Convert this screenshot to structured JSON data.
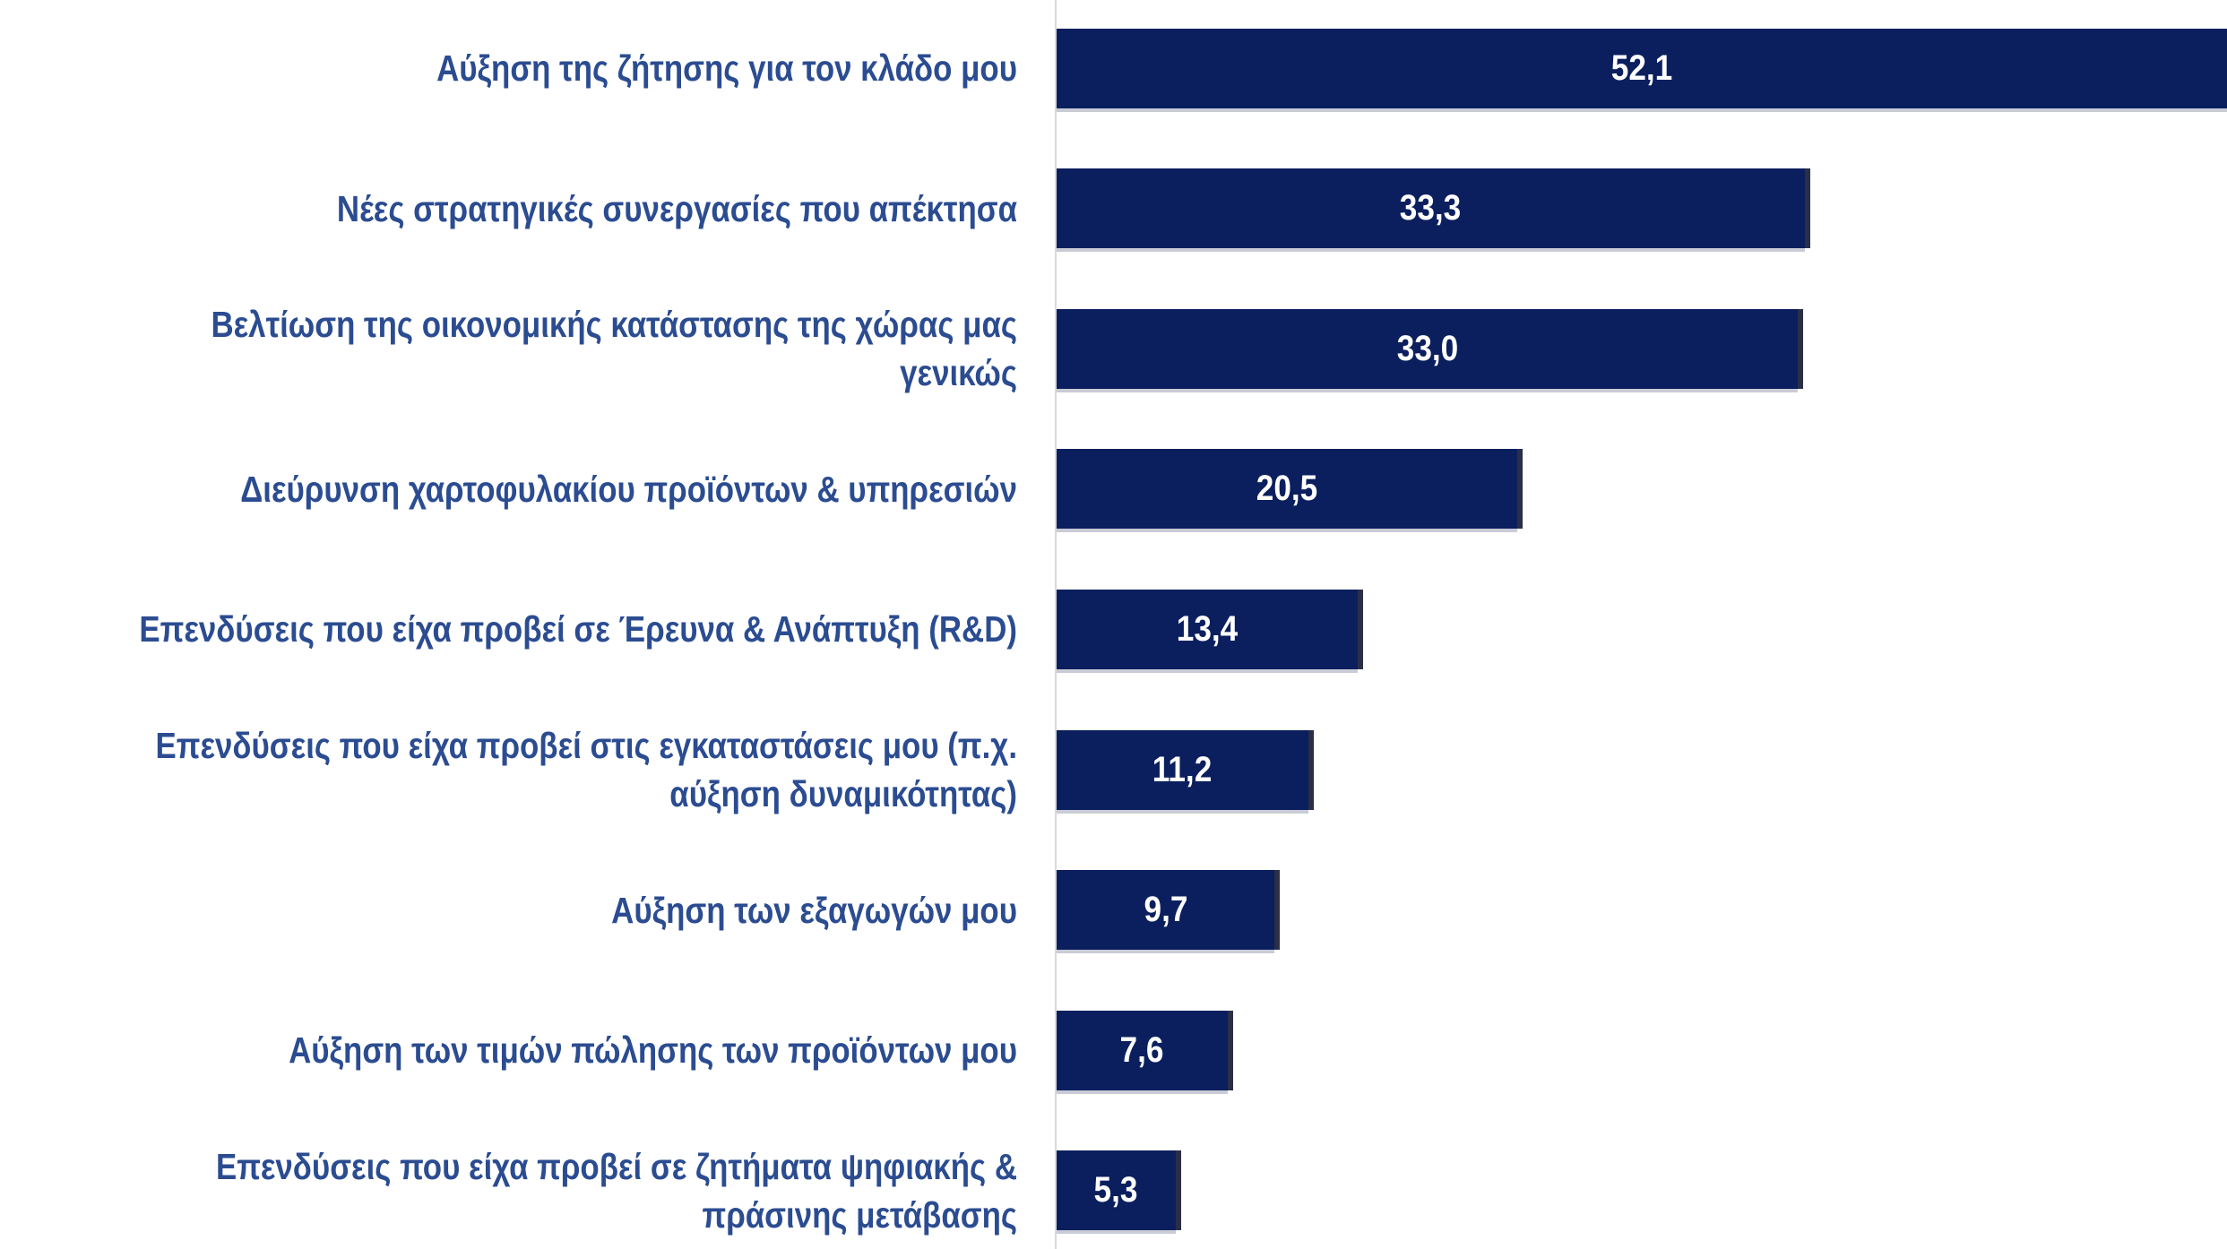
{
  "chart_data": {
    "type": "bar",
    "orientation": "horizontal",
    "categories": [
      "Αύξηση της ζήτησης για τον κλάδο μου",
      "Νέες στρατηγικές συνεργασίες που απέκτησα",
      "Βελτίωση της οικονομικής κατάστασης της χώρας μας\nγενικώς",
      "Διεύρυνση χαρτοφυλακίου προϊόντων & υπηρεσιών",
      "Επενδύσεις που είχα προβεί σε Έρευνα & Ανάπτυξη (R&D)",
      "Επενδύσεις που είχα προβεί στις εγκαταστάσεις μου (π.χ.\nαύξηση δυναμικότητας)",
      "Αύξηση των εξαγωγών μου",
      "Αύξηση των τιμών πώλησης των προϊόντων μου",
      "Επενδύσεις που είχα προβεί σε ζητήματα ψηφιακής &\nπράσινης μετάβασης"
    ],
    "values": [
      52.1,
      33.3,
      33.0,
      20.5,
      13.4,
      11.2,
      9.7,
      7.6,
      5.3
    ],
    "value_labels": [
      "52,1",
      "33,3",
      "33,0",
      "20,5",
      "13,4",
      "11,2",
      "9,7",
      "7,6",
      "5,3"
    ],
    "color": "#0b1f5e"
  }
}
